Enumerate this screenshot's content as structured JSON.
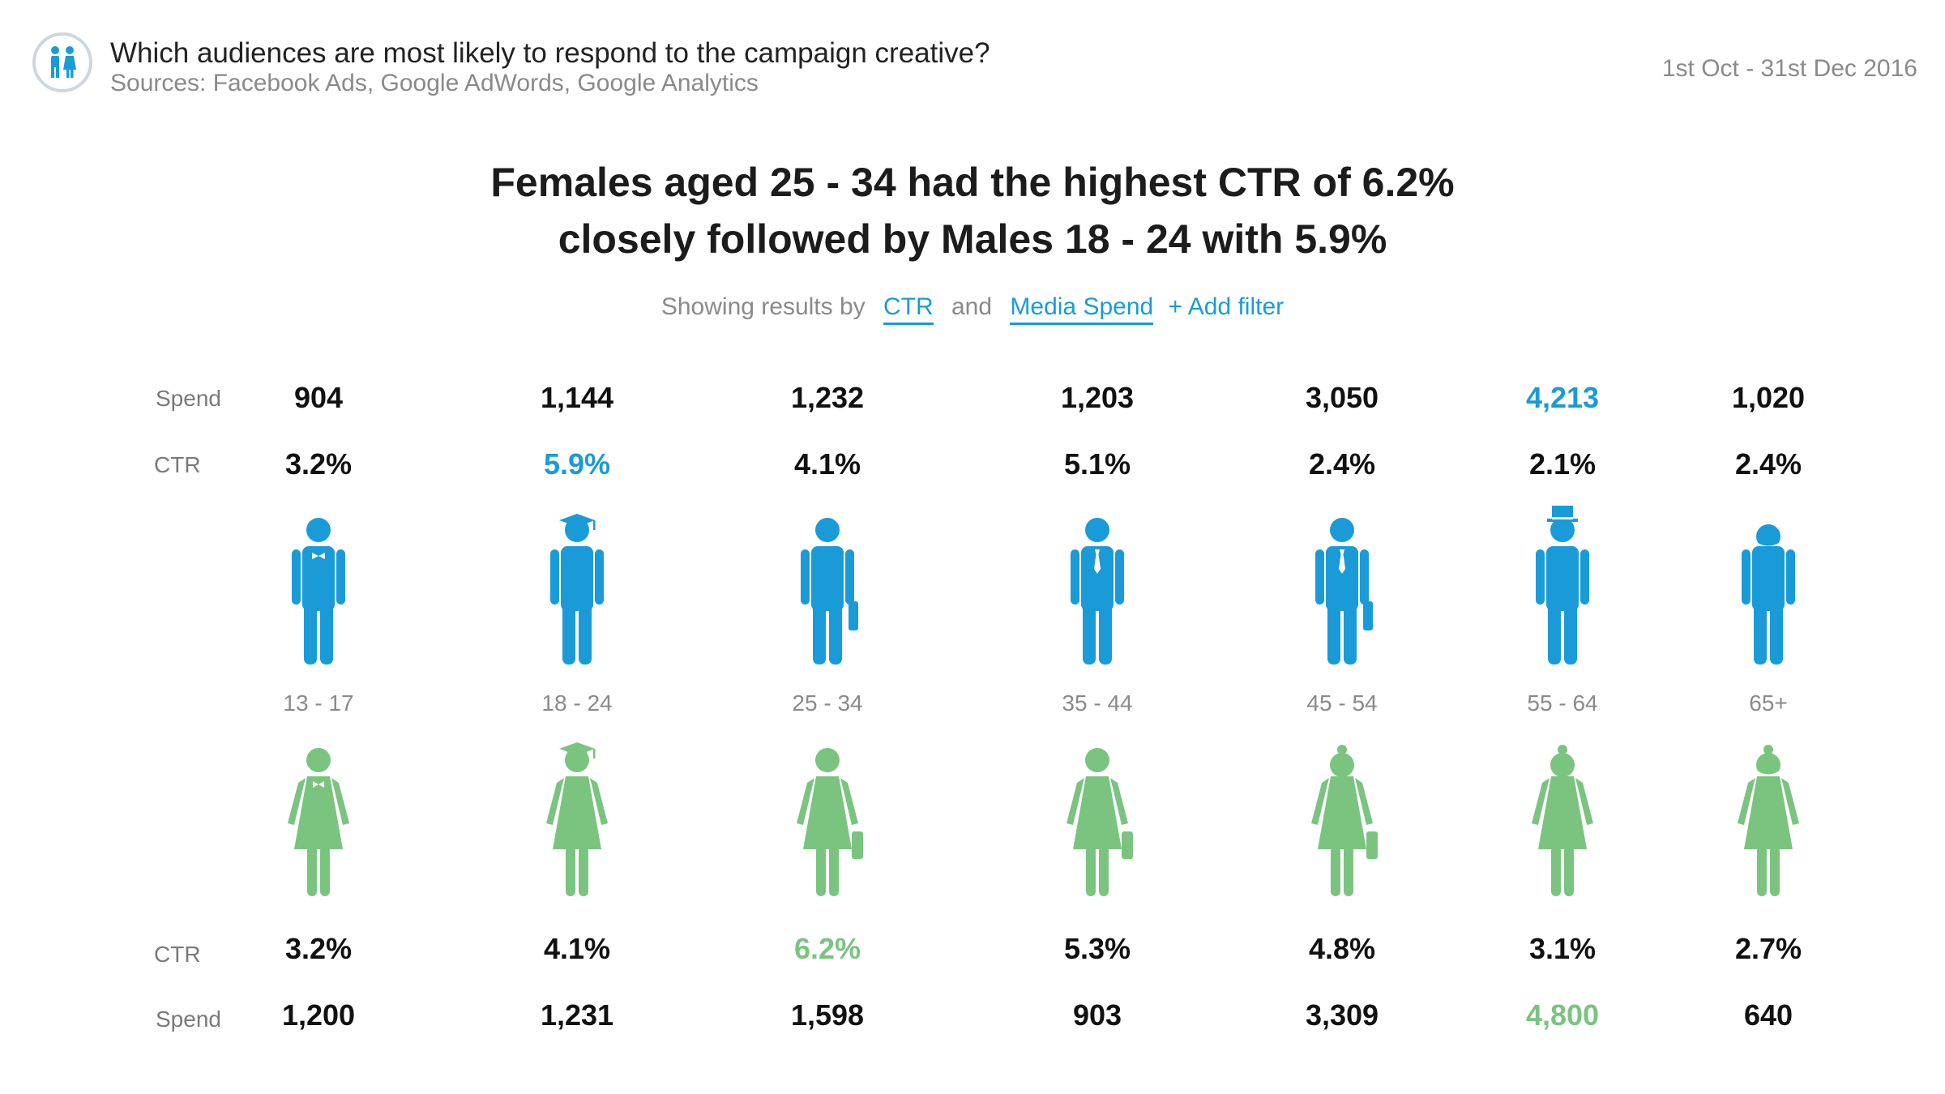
{
  "header": {
    "title": "Which audiences are most likely to respond to the campaign creative?",
    "sources": "Sources: Facebook Ads, Google AdWords, Google Analytics",
    "date_range": "1st Oct - 31st Dec 2016",
    "logo_icon": "people-icon"
  },
  "headline": {
    "line1": "Females aged 25 - 34 had the highest CTR of 6.2%",
    "line2": "closely followed by Males 18 - 24 with 5.9%"
  },
  "filters": {
    "prefix": "Showing results by",
    "metric1": "CTR",
    "joiner": "and",
    "metric2": "Media Spend",
    "add_label": "+ Add filter"
  },
  "row_labels": {
    "male_spend": "Spend",
    "male_ctr": "CTR",
    "female_ctr": "CTR",
    "female_spend": "Spend"
  },
  "colors": {
    "male": "#1a9bd7",
    "female": "#7ac47f",
    "text": "#111111",
    "muted": "#8a8a8a"
  },
  "chart_data": {
    "type": "table",
    "categories": [
      "13 - 17",
      "18 - 24",
      "25 - 34",
      "35 - 44",
      "45 - 54",
      "55 - 64",
      "65+"
    ],
    "male": {
      "spend": [
        "904",
        "1,144",
        "1,232",
        "1,203",
        "3,050",
        "4,213",
        "1,020"
      ],
      "ctr": [
        "3.2%",
        "5.9%",
        "4.1%",
        "5.1%",
        "2.4%",
        "2.1%",
        "2.4%"
      ],
      "icons": [
        "male-bowtie-icon",
        "male-graduate-icon",
        "male-briefcase-icon",
        "male-tie-icon",
        "male-tie-briefcase-icon",
        "male-tophat-icon",
        "male-elder-icon"
      ],
      "highlight_spend": 5,
      "highlight_ctr": 1
    },
    "female": {
      "ctr": [
        "3.2%",
        "4.1%",
        "6.2%",
        "5.3%",
        "4.8%",
        "3.1%",
        "2.7%"
      ],
      "spend": [
        "1,200",
        "1,231",
        "1,598",
        "903",
        "3,309",
        "4,800",
        "640"
      ],
      "icons": [
        "female-bow-icon",
        "female-graduate-icon",
        "female-bag-icon",
        "female-bag-icon",
        "female-bun-bag-icon",
        "female-bun-icon",
        "female-elder-icon"
      ],
      "highlight_ctr": 2,
      "highlight_spend": 5
    }
  }
}
